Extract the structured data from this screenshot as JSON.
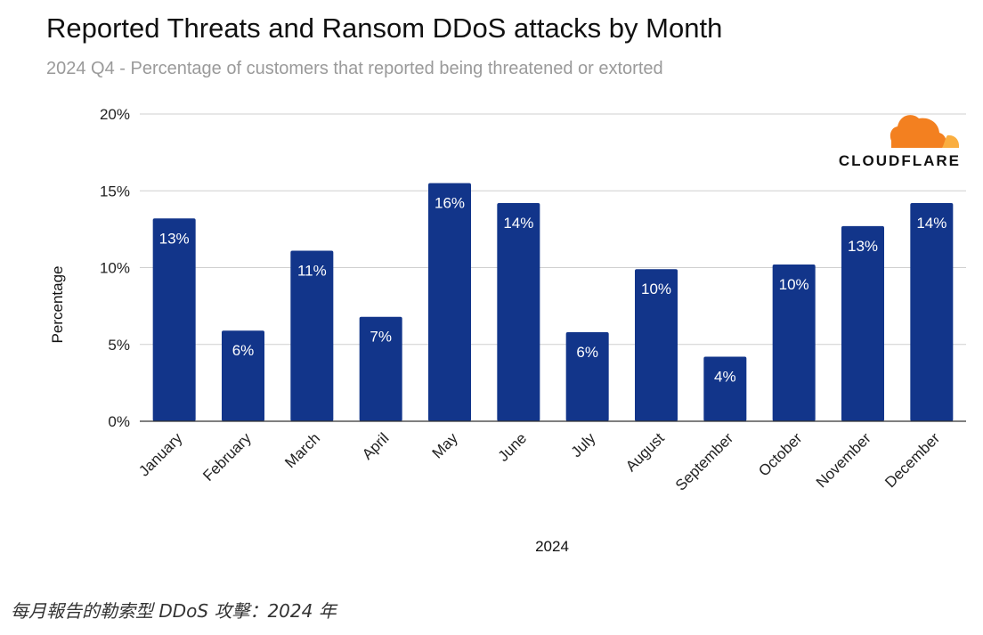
{
  "chart_data": {
    "type": "bar",
    "title": "Reported Threats and Ransom DDoS attacks by Month",
    "subtitle": "2024 Q4 - Percentage of customers that reported being threatened or extorted",
    "xlabel": "2024",
    "ylabel": "Percentage",
    "ylim": [
      0,
      20
    ],
    "yticks": [
      0,
      5,
      10,
      15,
      20
    ],
    "ytick_labels": [
      "0%",
      "5%",
      "10%",
      "15%",
      "20%"
    ],
    "grid": true,
    "categories": [
      "January",
      "February",
      "March",
      "April",
      "May",
      "June",
      "July",
      "August",
      "September",
      "October",
      "November",
      "December"
    ],
    "values": [
      13.2,
      5.9,
      11.1,
      6.8,
      15.5,
      14.2,
      5.8,
      9.9,
      4.2,
      10.2,
      12.7,
      14.2
    ],
    "data_labels": [
      "13%",
      "6%",
      "11%",
      "7%",
      "16%",
      "14%",
      "6%",
      "10%",
      "4%",
      "10%",
      "13%",
      "14%"
    ],
    "bar_color": "#12358a",
    "grid_color": "#cfcfcf"
  },
  "logo": {
    "text": "CLOUDFLARE",
    "cloud_color_dark": "#f38020",
    "cloud_color_light": "#faae40"
  },
  "caption": "每月報告的勒索型 DDoS 攻擊：2024 年"
}
